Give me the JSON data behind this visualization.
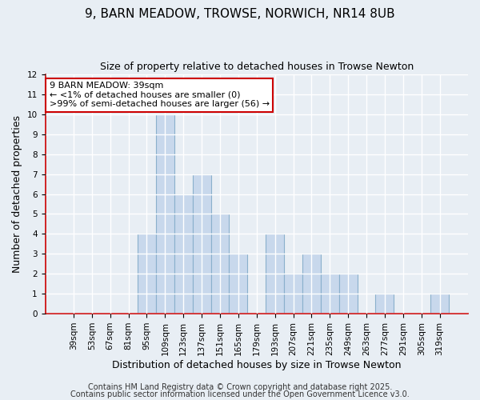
{
  "title": "9, BARN MEADOW, TROWSE, NORWICH, NR14 8UB",
  "subtitle": "Size of property relative to detached houses in Trowse Newton",
  "xlabel": "Distribution of detached houses by size in Trowse Newton",
  "ylabel": "Number of detached properties",
  "bar_color": "#c8d8ec",
  "bar_edge_color": "#8ab0cc",
  "annotation_box_color": "#cc0000",
  "annotation_line1": "9 BARN MEADOW: 39sqm",
  "annotation_line2": "← <1% of detached houses are smaller (0)",
  "annotation_line3": ">99% of semi-detached houses are larger (56) →",
  "categories": [
    "39sqm",
    "53sqm",
    "67sqm",
    "81sqm",
    "95sqm",
    "109sqm",
    "123sqm",
    "137sqm",
    "151sqm",
    "165sqm",
    "179sqm",
    "193sqm",
    "207sqm",
    "221sqm",
    "235sqm",
    "249sqm",
    "263sqm",
    "277sqm",
    "291sqm",
    "305sqm",
    "319sqm"
  ],
  "values": [
    0,
    0,
    0,
    0,
    4,
    10,
    6,
    7,
    5,
    3,
    0,
    4,
    2,
    3,
    2,
    2,
    0,
    1,
    0,
    0,
    1
  ],
  "ylim": [
    0,
    12
  ],
  "yticks": [
    0,
    1,
    2,
    3,
    4,
    5,
    6,
    7,
    8,
    9,
    10,
    11,
    12
  ],
  "footer1": "Contains HM Land Registry data © Crown copyright and database right 2025.",
  "footer2": "Contains public sector information licensed under the Open Government Licence v3.0.",
  "bg_color": "#e8eef4",
  "plot_bg_color": "#e8eef4",
  "grid_color": "#ffffff",
  "title_fontsize": 11,
  "subtitle_fontsize": 9,
  "ylabel_fontsize": 9,
  "xlabel_fontsize": 9,
  "tick_fontsize": 7.5,
  "footer_fontsize": 7,
  "annotation_fontsize": 8
}
